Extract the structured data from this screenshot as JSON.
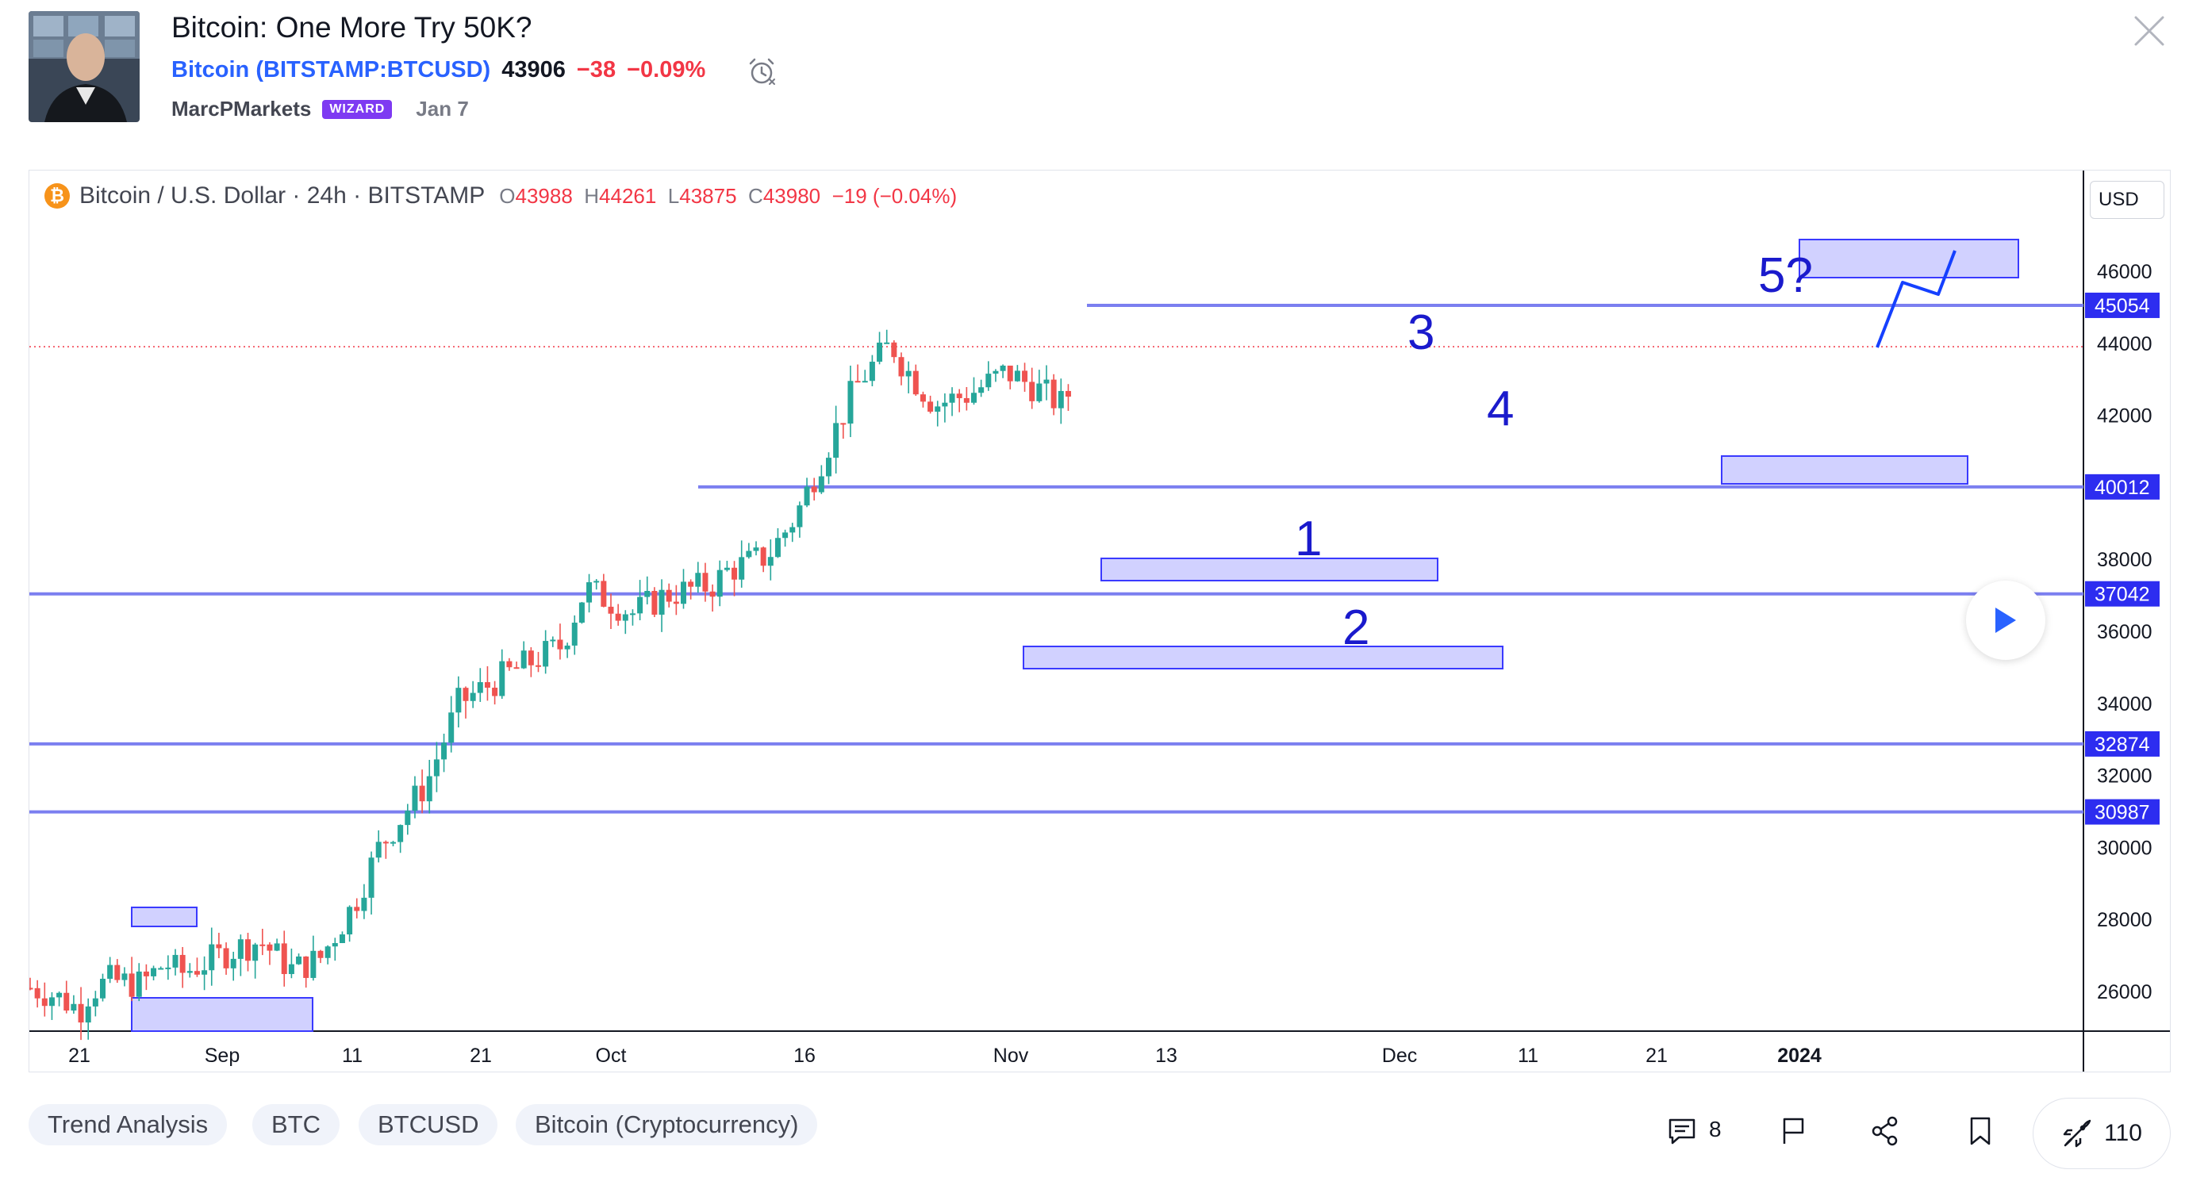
{
  "idea": {
    "title": "Bitcoin: One More Try 50K?",
    "symbol_name": "Bitcoin",
    "symbol_ticker": "(BITSTAMP:BTCUSD)",
    "last_price": "43906",
    "change": "−38",
    "change_pct": "−0.09%",
    "author": "MarcPMarkets",
    "badge": "WIZARD",
    "date": "Jan 7"
  },
  "chart": {
    "legend_name": "Bitcoin / U.S. Dollar · 24h · BITSTAMP",
    "ohlc": {
      "o_label": "O",
      "o": "43988",
      "h_label": "H",
      "h": "44261",
      "l_label": "L",
      "l": "43875",
      "c_label": "C",
      "c": "43980",
      "chg": "−19 (−0.04%)"
    },
    "currency": "USD",
    "btc_glyph": "₿",
    "y_ticks": [
      "46000",
      "44000",
      "42000",
      "38000",
      "36000",
      "34000",
      "32000",
      "30000",
      "28000",
      "26000"
    ],
    "x_ticks": [
      "21",
      "Sep",
      "11",
      "21",
      "Oct",
      "16",
      "Nov",
      "13",
      "Dec",
      "11",
      "21",
      "2024"
    ],
    "level_labels": [
      "45054",
      "40012",
      "37042",
      "32874",
      "30987"
    ],
    "wave_labels": [
      "1",
      "2",
      "3",
      "4",
      "5?"
    ]
  },
  "chart_data": {
    "type": "candlestick",
    "ylim": [
      24800,
      47200
    ],
    "horizontal_levels": [
      45054,
      40012,
      37042,
      32874,
      30987
    ],
    "current_price_line": 43906,
    "colors": {
      "up": "#26a69a",
      "down": "#ef5350",
      "level": "#7b7ff0",
      "zone": "#c9c9ff",
      "label": "#1a1acc"
    }
  },
  "tags": [
    "Trend Analysis",
    "BTC",
    "BTCUSD",
    "Bitcoin (Cryptocurrency)"
  ],
  "actions": {
    "comments": "8",
    "boosts": "110",
    "icons": [
      "comment-icon",
      "flag-icon",
      "share-icon",
      "bookmark-icon",
      "rocket-icon"
    ]
  }
}
